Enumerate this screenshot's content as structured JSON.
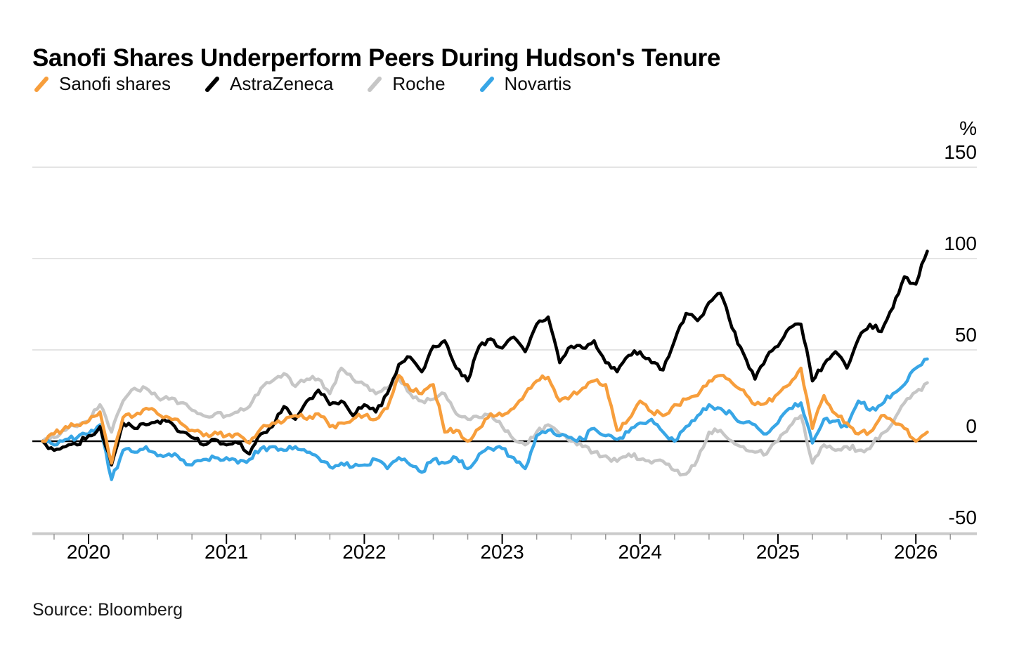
{
  "title": "Sanofi Shares Underperform Peers During Hudson's Tenure",
  "source": "Source: Bloomberg",
  "colors": {
    "sanofi_orange": "#F79E3C",
    "astrazeneca_black": "#000000",
    "roche_gray": "#C6C6C6",
    "novartis_blue": "#38A6E6",
    "gridline": "#DCDCDC",
    "axis_line": "#C9C9C9",
    "zero_line": "#000000"
  },
  "chart_data": {
    "type": "line",
    "title": "Sanofi Shares Underperform Peers During Hudson's Tenure",
    "xlabel": "",
    "ylabel": "%",
    "y_unit": "%",
    "grid": "horizontal",
    "legend_position": "top",
    "zero_baseline": true,
    "x_start": "2019-09",
    "x_end": "2026-02",
    "x_frequency": "monthly",
    "x_tick_years": [
      2020,
      2021,
      2022,
      2023,
      2024,
      2025,
      2026
    ],
    "y_ticks": [
      150,
      100,
      50,
      0,
      -50
    ],
    "ylim": [
      -50,
      150
    ],
    "series": [
      {
        "name": "Sanofi shares",
        "color": "#F79E3C",
        "values": [
          0,
          4,
          8,
          9,
          11,
          16,
          -12,
          13,
          14,
          18,
          15,
          13,
          10,
          6,
          3,
          5,
          3,
          4,
          -1,
          7,
          10,
          11,
          14,
          12,
          15,
          8,
          10,
          12,
          14,
          12,
          18,
          36,
          28,
          26,
          31,
          5,
          6,
          0,
          7,
          15,
          14,
          18,
          26,
          33,
          35,
          22,
          25,
          29,
          33,
          31,
          6,
          12,
          22,
          16,
          14,
          20,
          23,
          25,
          33,
          36,
          32,
          28,
          20,
          21,
          26,
          31,
          40,
          7,
          25,
          15,
          10,
          4,
          5,
          14,
          11,
          7,
          0,
          5
        ]
      },
      {
        "name": "AstraZeneca",
        "color": "#000000",
        "values": [
          0,
          -5,
          -3,
          -2,
          3,
          8,
          -13,
          10,
          7,
          9,
          11,
          11,
          5,
          2,
          -2,
          1,
          -2,
          -1,
          -7,
          4,
          8,
          19,
          12,
          22,
          28,
          20,
          22,
          14,
          20,
          16,
          26,
          42,
          46,
          38,
          52,
          55,
          40,
          33,
          52,
          56,
          51,
          57,
          49,
          64,
          68,
          43,
          52,
          51,
          55,
          43,
          38,
          47,
          49,
          43,
          39,
          55,
          70,
          66,
          76,
          81,
          62,
          48,
          34,
          46,
          52,
          62,
          64,
          33,
          42,
          49,
          40,
          56,
          64,
          60,
          73,
          90,
          86,
          104
        ]
      },
      {
        "name": "Roche",
        "color": "#C6C6C6",
        "values": [
          0,
          2,
          6,
          8,
          11,
          20,
          5,
          22,
          29,
          29,
          24,
          23,
          21,
          17,
          14,
          15,
          14,
          16,
          19,
          29,
          33,
          37,
          30,
          34,
          34,
          26,
          40,
          34,
          31,
          26,
          29,
          34,
          26,
          22,
          23,
          26,
          15,
          12,
          13,
          15,
          8,
          1,
          -2,
          5,
          9,
          4,
          0,
          -3,
          -6,
          -8,
          -11,
          -7,
          -10,
          -12,
          -11,
          -16,
          -18,
          -10,
          5,
          6,
          0,
          -3,
          -6,
          -7,
          0,
          8,
          14,
          -12,
          -2,
          -5,
          -3,
          -5,
          -4,
          4,
          10,
          21,
          27,
          32
        ]
      },
      {
        "name": "Novartis",
        "color": "#38A6E6",
        "values": [
          0,
          -2,
          1,
          2,
          4,
          9,
          -21,
          -5,
          -6,
          -3,
          -8,
          -7,
          -10,
          -13,
          -10,
          -9,
          -9,
          -12,
          -10,
          -4,
          -3,
          -5,
          -3,
          -6,
          -9,
          -14,
          -12,
          -14,
          -13,
          -10,
          -15,
          -9,
          -13,
          -17,
          -10,
          -12,
          -9,
          -15,
          -7,
          -4,
          -4,
          -9,
          -15,
          3,
          6,
          3,
          2,
          1,
          7,
          3,
          1,
          5,
          10,
          12,
          5,
          0,
          8,
          14,
          20,
          18,
          15,
          10,
          9,
          4,
          10,
          18,
          21,
          -1,
          12,
          11,
          8,
          22,
          17,
          20,
          26,
          31,
          40,
          45
        ]
      }
    ]
  }
}
